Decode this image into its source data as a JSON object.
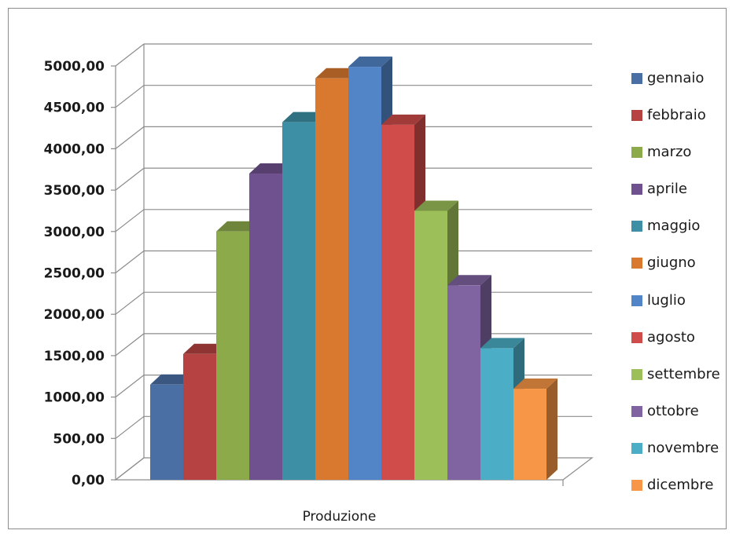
{
  "chart_data": {
    "type": "bar",
    "title": "",
    "xlabel": "",
    "ylabel": "",
    "categories": [
      "Produzione"
    ],
    "ylim": [
      0,
      5000
    ],
    "yticks": [
      "0,00",
      "500,00",
      "1000,00",
      "1500,00",
      "2000,00",
      "2500,00",
      "3000,00",
      "3500,00",
      "4000,00",
      "4500,00",
      "5000,00"
    ],
    "grid": true,
    "legend_position": "right",
    "series": [
      {
        "name": "gennaio",
        "values": [
          1150
        ],
        "color": "#4a6fa5"
      },
      {
        "name": "febbraio",
        "values": [
          1520
        ],
        "color": "#b64342"
      },
      {
        "name": "marzo",
        "values": [
          3000
        ],
        "color": "#8daa4b"
      },
      {
        "name": "aprile",
        "values": [
          3700
        ],
        "color": "#6f518f"
      },
      {
        "name": "maggio",
        "values": [
          4320
        ],
        "color": "#3c8fa5"
      },
      {
        "name": "giugno",
        "values": [
          4850
        ],
        "color": "#d9782f"
      },
      {
        "name": "luglio",
        "values": [
          4990
        ],
        "color": "#5285c7"
      },
      {
        "name": "agosto",
        "values": [
          4290
        ],
        "color": "#cf4c4a"
      },
      {
        "name": "settembre",
        "values": [
          3250
        ],
        "color": "#9dbf59"
      },
      {
        "name": "ottobre",
        "values": [
          2350
        ],
        "color": "#8064a2"
      },
      {
        "name": "novembre",
        "values": [
          1590
        ],
        "color": "#4badc6"
      },
      {
        "name": "dicembre",
        "values": [
          1100
        ],
        "color": "#f79646"
      }
    ]
  }
}
